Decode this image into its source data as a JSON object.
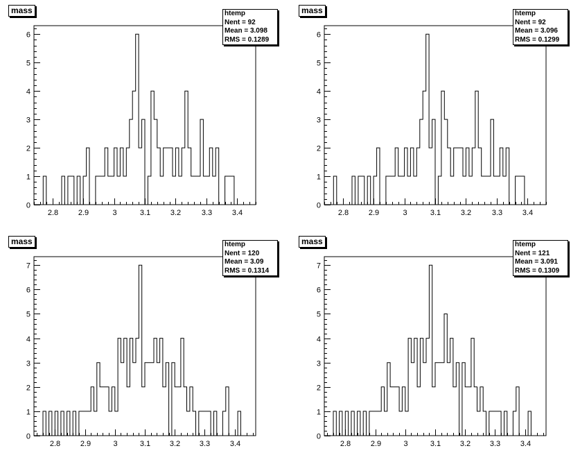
{
  "chart_data": [
    {
      "type": "histogram",
      "title": "mass",
      "stats": {
        "name": "htemp",
        "entries_label": "Nent = 92",
        "mean_label": "Mean  =  3.098",
        "rms_label": "RMS   = 0.1289"
      },
      "xlim": [
        2.74,
        3.46
      ],
      "ylim": [
        0,
        6.3
      ],
      "x_ticks": [
        2.8,
        2.9,
        3,
        3.1,
        3.2,
        3.3,
        3.4
      ],
      "x_tick_labels": [
        "2.8",
        "2.9",
        "3",
        "3.1",
        "3.2",
        "3.3",
        "3.4"
      ],
      "y_ticks": [
        0,
        1,
        2,
        3,
        4,
        5,
        6
      ],
      "y_tick_labels": [
        "0",
        "1",
        "2",
        "3",
        "4",
        "5",
        "6"
      ],
      "bins": [
        [
          2.77,
          2.78,
          1
        ],
        [
          2.83,
          2.84,
          1
        ],
        [
          2.85,
          2.86,
          1
        ],
        [
          2.86,
          2.87,
          1
        ],
        [
          2.88,
          2.89,
          1
        ],
        [
          2.9,
          2.91,
          1
        ],
        [
          2.91,
          2.92,
          2
        ],
        [
          2.94,
          2.95,
          1
        ],
        [
          2.95,
          2.96,
          1
        ],
        [
          2.96,
          2.97,
          1
        ],
        [
          2.97,
          2.98,
          2
        ],
        [
          2.98,
          2.99,
          1
        ],
        [
          2.99,
          3.0,
          1
        ],
        [
          3.0,
          3.01,
          2
        ],
        [
          3.01,
          3.02,
          1
        ],
        [
          3.02,
          3.03,
          2
        ],
        [
          3.03,
          3.04,
          1
        ],
        [
          3.04,
          3.05,
          2
        ],
        [
          3.05,
          3.06,
          3
        ],
        [
          3.06,
          3.07,
          4
        ],
        [
          3.07,
          3.08,
          6
        ],
        [
          3.08,
          3.09,
          2
        ],
        [
          3.09,
          3.1,
          3
        ],
        [
          3.1,
          3.11,
          0
        ],
        [
          3.11,
          3.12,
          1
        ],
        [
          3.12,
          3.13,
          4
        ],
        [
          3.13,
          3.14,
          3
        ],
        [
          3.14,
          3.15,
          2
        ],
        [
          3.15,
          3.16,
          1
        ],
        [
          3.16,
          3.17,
          2
        ],
        [
          3.17,
          3.18,
          2
        ],
        [
          3.18,
          3.19,
          2
        ],
        [
          3.19,
          3.2,
          1
        ],
        [
          3.2,
          3.21,
          2
        ],
        [
          3.21,
          3.22,
          1
        ],
        [
          3.22,
          3.23,
          2
        ],
        [
          3.23,
          3.24,
          4
        ],
        [
          3.24,
          3.25,
          2
        ],
        [
          3.25,
          3.26,
          1
        ],
        [
          3.26,
          3.27,
          1
        ],
        [
          3.27,
          3.28,
          1
        ],
        [
          3.28,
          3.29,
          3
        ],
        [
          3.29,
          3.3,
          1
        ],
        [
          3.3,
          3.31,
          1
        ],
        [
          3.31,
          3.32,
          2
        ],
        [
          3.32,
          3.33,
          1
        ],
        [
          3.33,
          3.34,
          2
        ],
        [
          3.36,
          3.37,
          1
        ],
        [
          3.37,
          3.38,
          1
        ],
        [
          3.38,
          3.39,
          1
        ]
      ]
    },
    {
      "type": "histogram",
      "title": "mass",
      "stats": {
        "name": "htemp",
        "entries_label": "Nent = 92",
        "mean_label": "Mean  =  3.096",
        "rms_label": "RMS   = 0.1299"
      },
      "xlim": [
        2.74,
        3.46
      ],
      "ylim": [
        0,
        6.3
      ],
      "x_ticks": [
        2.8,
        2.9,
        3,
        3.1,
        3.2,
        3.3,
        3.4
      ],
      "x_tick_labels": [
        "2.8",
        "2.9",
        "3",
        "3.1",
        "3.2",
        "3.3",
        "3.4"
      ],
      "y_ticks": [
        0,
        1,
        2,
        3,
        4,
        5,
        6
      ],
      "y_tick_labels": [
        "0",
        "1",
        "2",
        "3",
        "4",
        "5",
        "6"
      ],
      "bins": [
        [
          2.77,
          2.78,
          1
        ],
        [
          2.83,
          2.84,
          1
        ],
        [
          2.85,
          2.86,
          1
        ],
        [
          2.86,
          2.87,
          1
        ],
        [
          2.88,
          2.89,
          1
        ],
        [
          2.9,
          2.91,
          1
        ],
        [
          2.91,
          2.92,
          2
        ],
        [
          2.94,
          2.95,
          1
        ],
        [
          2.95,
          2.96,
          1
        ],
        [
          2.96,
          2.97,
          1
        ],
        [
          2.97,
          2.98,
          2
        ],
        [
          2.98,
          2.99,
          1
        ],
        [
          2.99,
          3.0,
          1
        ],
        [
          3.0,
          3.01,
          2
        ],
        [
          3.01,
          3.02,
          1
        ],
        [
          3.02,
          3.03,
          2
        ],
        [
          3.03,
          3.04,
          1
        ],
        [
          3.04,
          3.05,
          2
        ],
        [
          3.05,
          3.06,
          3
        ],
        [
          3.06,
          3.07,
          4
        ],
        [
          3.07,
          3.08,
          6
        ],
        [
          3.08,
          3.09,
          2
        ],
        [
          3.09,
          3.1,
          3
        ],
        [
          3.1,
          3.11,
          0
        ],
        [
          3.11,
          3.12,
          1
        ],
        [
          3.12,
          3.13,
          4
        ],
        [
          3.13,
          3.14,
          3
        ],
        [
          3.14,
          3.15,
          2
        ],
        [
          3.15,
          3.16,
          1
        ],
        [
          3.16,
          3.17,
          2
        ],
        [
          3.17,
          3.18,
          2
        ],
        [
          3.18,
          3.19,
          2
        ],
        [
          3.19,
          3.2,
          1
        ],
        [
          3.2,
          3.21,
          2
        ],
        [
          3.21,
          3.22,
          1
        ],
        [
          3.22,
          3.23,
          2
        ],
        [
          3.23,
          3.24,
          4
        ],
        [
          3.24,
          3.25,
          2
        ],
        [
          3.25,
          3.26,
          1
        ],
        [
          3.26,
          3.27,
          1
        ],
        [
          3.27,
          3.28,
          1
        ],
        [
          3.28,
          3.29,
          3
        ],
        [
          3.29,
          3.3,
          1
        ],
        [
          3.3,
          3.31,
          1
        ],
        [
          3.31,
          3.32,
          2
        ],
        [
          3.32,
          3.33,
          1
        ],
        [
          3.33,
          3.34,
          2
        ],
        [
          3.36,
          3.37,
          1
        ],
        [
          3.37,
          3.38,
          1
        ],
        [
          3.38,
          3.39,
          1
        ]
      ]
    },
    {
      "type": "histogram",
      "title": "mass",
      "stats": {
        "name": "htemp",
        "entries_label": "Nent = 120",
        "mean_label": "Mean  =   3.09",
        "rms_label": "RMS   = 0.1314"
      },
      "xlim": [
        2.73,
        3.47
      ],
      "ylim": [
        0,
        7.35
      ],
      "x_ticks": [
        2.8,
        2.9,
        3,
        3.1,
        3.2,
        3.3,
        3.4
      ],
      "x_tick_labels": [
        "2.8",
        "2.9",
        "3",
        "3.1",
        "3.2",
        "3.3",
        "3.4"
      ],
      "y_ticks": [
        0,
        1,
        2,
        3,
        4,
        5,
        6,
        7
      ],
      "y_tick_labels": [
        "0",
        "1",
        "2",
        "3",
        "4",
        "5",
        "6",
        "7"
      ],
      "bins": [
        [
          2.76,
          2.77,
          1
        ],
        [
          2.77,
          2.78,
          0
        ],
        [
          2.78,
          2.79,
          1
        ],
        [
          2.79,
          2.8,
          0
        ],
        [
          2.8,
          2.81,
          1
        ],
        [
          2.82,
          2.83,
          1
        ],
        [
          2.83,
          2.84,
          0
        ],
        [
          2.84,
          2.85,
          1
        ],
        [
          2.85,
          2.86,
          0
        ],
        [
          2.86,
          2.87,
          1
        ],
        [
          2.87,
          2.88,
          0
        ],
        [
          2.88,
          2.89,
          1
        ],
        [
          2.89,
          2.9,
          1
        ],
        [
          2.9,
          2.91,
          1
        ],
        [
          2.91,
          2.92,
          1
        ],
        [
          2.92,
          2.93,
          2
        ],
        [
          2.93,
          2.94,
          1
        ],
        [
          2.94,
          2.95,
          3
        ],
        [
          2.95,
          2.96,
          2
        ],
        [
          2.96,
          2.97,
          2
        ],
        [
          2.97,
          2.98,
          2
        ],
        [
          2.98,
          2.99,
          1
        ],
        [
          2.99,
          3.0,
          2
        ],
        [
          3.0,
          3.01,
          1
        ],
        [
          3.01,
          3.02,
          4
        ],
        [
          3.02,
          3.03,
          3
        ],
        [
          3.03,
          3.04,
          4
        ],
        [
          3.04,
          3.05,
          2
        ],
        [
          3.05,
          3.06,
          4
        ],
        [
          3.06,
          3.07,
          3
        ],
        [
          3.07,
          3.08,
          4
        ],
        [
          3.08,
          3.09,
          7
        ],
        [
          3.09,
          3.1,
          2
        ],
        [
          3.1,
          3.11,
          3
        ],
        [
          3.11,
          3.12,
          3
        ],
        [
          3.12,
          3.13,
          3
        ],
        [
          3.13,
          3.14,
          4
        ],
        [
          3.14,
          3.15,
          3
        ],
        [
          3.15,
          3.16,
          4
        ],
        [
          3.16,
          3.17,
          2
        ],
        [
          3.17,
          3.18,
          3
        ],
        [
          3.18,
          3.19,
          0
        ],
        [
          3.19,
          3.2,
          3
        ],
        [
          3.2,
          3.21,
          2
        ],
        [
          3.21,
          3.22,
          2
        ],
        [
          3.22,
          3.23,
          4
        ],
        [
          3.23,
          3.24,
          2
        ],
        [
          3.24,
          3.25,
          1
        ],
        [
          3.25,
          3.26,
          2
        ],
        [
          3.26,
          3.27,
          1
        ],
        [
          3.28,
          3.29,
          1
        ],
        [
          3.29,
          3.3,
          1
        ],
        [
          3.3,
          3.31,
          1
        ],
        [
          3.31,
          3.32,
          1
        ],
        [
          3.32,
          3.33,
          0
        ],
        [
          3.33,
          3.34,
          1
        ],
        [
          3.36,
          3.37,
          1
        ],
        [
          3.37,
          3.38,
          2
        ],
        [
          3.38,
          3.39,
          0
        ],
        [
          3.41,
          3.42,
          1
        ]
      ]
    },
    {
      "type": "histogram",
      "title": "mass",
      "stats": {
        "name": "htemp",
        "entries_label": "Nent = 121",
        "mean_label": "Mean  = 3.091",
        "rms_label": "RMS   = 0.1309"
      },
      "xlim": [
        2.73,
        3.47
      ],
      "ylim": [
        0,
        7.35
      ],
      "x_ticks": [
        2.8,
        2.9,
        3,
        3.1,
        3.2,
        3.3,
        3.4
      ],
      "x_tick_labels": [
        "2.8",
        "2.9",
        "3",
        "3.1",
        "3.2",
        "3.3",
        "3.4"
      ],
      "y_ticks": [
        0,
        1,
        2,
        3,
        4,
        5,
        6,
        7
      ],
      "y_tick_labels": [
        "0",
        "1",
        "2",
        "3",
        "4",
        "5",
        "6",
        "7"
      ],
      "bins": [
        [
          2.76,
          2.77,
          1
        ],
        [
          2.77,
          2.78,
          0
        ],
        [
          2.78,
          2.79,
          1
        ],
        [
          2.79,
          2.8,
          0
        ],
        [
          2.8,
          2.81,
          1
        ],
        [
          2.82,
          2.83,
          1
        ],
        [
          2.83,
          2.84,
          0
        ],
        [
          2.84,
          2.85,
          1
        ],
        [
          2.85,
          2.86,
          0
        ],
        [
          2.86,
          2.87,
          1
        ],
        [
          2.87,
          2.88,
          0
        ],
        [
          2.88,
          2.89,
          1
        ],
        [
          2.89,
          2.9,
          1
        ],
        [
          2.9,
          2.91,
          1
        ],
        [
          2.91,
          2.92,
          1
        ],
        [
          2.92,
          2.93,
          2
        ],
        [
          2.93,
          2.94,
          1
        ],
        [
          2.94,
          2.95,
          3
        ],
        [
          2.95,
          2.96,
          2
        ],
        [
          2.96,
          2.97,
          2
        ],
        [
          2.97,
          2.98,
          2
        ],
        [
          2.98,
          2.99,
          1
        ],
        [
          2.99,
          3.0,
          2
        ],
        [
          3.0,
          3.01,
          1
        ],
        [
          3.01,
          3.02,
          4
        ],
        [
          3.02,
          3.03,
          3
        ],
        [
          3.03,
          3.04,
          4
        ],
        [
          3.04,
          3.05,
          2
        ],
        [
          3.05,
          3.06,
          4
        ],
        [
          3.06,
          3.07,
          3
        ],
        [
          3.07,
          3.08,
          4
        ],
        [
          3.08,
          3.09,
          7
        ],
        [
          3.09,
          3.1,
          2
        ],
        [
          3.1,
          3.11,
          3
        ],
        [
          3.11,
          3.12,
          3
        ],
        [
          3.12,
          3.13,
          3
        ],
        [
          3.13,
          3.14,
          5
        ],
        [
          3.14,
          3.15,
          3
        ],
        [
          3.15,
          3.16,
          4
        ],
        [
          3.16,
          3.17,
          2
        ],
        [
          3.17,
          3.18,
          3
        ],
        [
          3.18,
          3.19,
          0
        ],
        [
          3.19,
          3.2,
          3
        ],
        [
          3.2,
          3.21,
          2
        ],
        [
          3.21,
          3.22,
          2
        ],
        [
          3.22,
          3.23,
          4
        ],
        [
          3.23,
          3.24,
          2
        ],
        [
          3.24,
          3.25,
          1
        ],
        [
          3.25,
          3.26,
          2
        ],
        [
          3.26,
          3.27,
          1
        ],
        [
          3.28,
          3.29,
          1
        ],
        [
          3.29,
          3.3,
          1
        ],
        [
          3.3,
          3.31,
          1
        ],
        [
          3.31,
          3.32,
          1
        ],
        [
          3.32,
          3.33,
          0
        ],
        [
          3.33,
          3.34,
          1
        ],
        [
          3.36,
          3.37,
          1
        ],
        [
          3.37,
          3.38,
          2
        ],
        [
          3.38,
          3.39,
          0
        ],
        [
          3.41,
          3.42,
          1
        ]
      ]
    }
  ]
}
